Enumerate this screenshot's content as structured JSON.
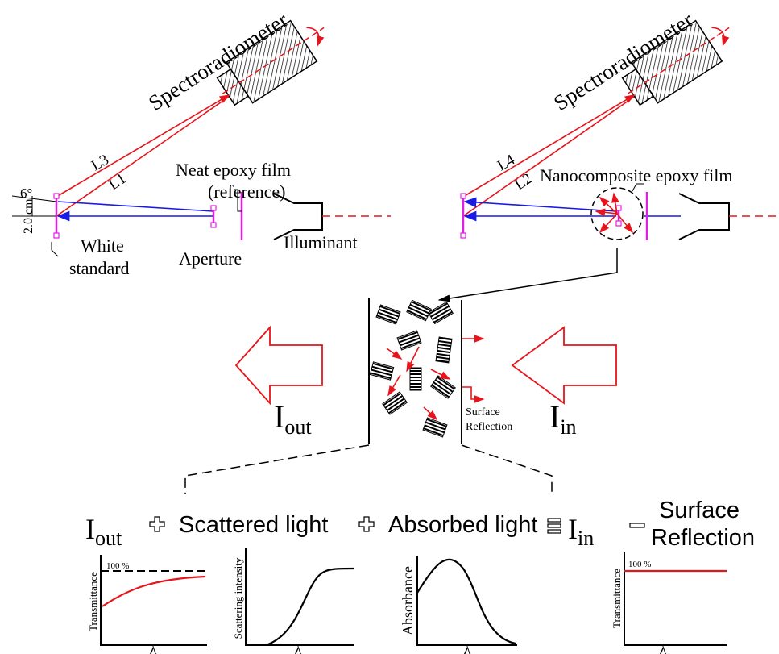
{
  "left_setup": {
    "detector": "Spectroradiometer",
    "rays": [
      "L3",
      "L1"
    ],
    "angle": "6°",
    "distance": "2.0 cm",
    "standard": [
      "White",
      "standard"
    ],
    "film": [
      "Neat epoxy film",
      "(reference)"
    ],
    "aperture": "Aperture",
    "source": "Illuminant"
  },
  "right_setup": {
    "detector": "Spectroradiometer",
    "rays": [
      "L4",
      "L2"
    ],
    "film": "Nanocomposite epoxy film"
  },
  "film_detail": {
    "out": {
      "symbol": "I",
      "subscript": "out"
    },
    "in": {
      "symbol": "I",
      "subscript": "in"
    },
    "surface_reflection": [
      "Surface",
      "Reflection"
    ]
  },
  "equation": {
    "out": {
      "symbol": "I",
      "subscript": "out"
    },
    "scattered": "Scattered light",
    "absorbed": "Absorbed light",
    "in": {
      "symbol": "I",
      "subscript": "in"
    },
    "surface_reflection": [
      "Surface",
      "Reflection"
    ]
  },
  "plots": [
    {
      "y_label": "Transmittance",
      "ref_label": "100 %",
      "x_label": "λ"
    },
    {
      "y_label": "Scattering intensity",
      "x_label": "λ"
    },
    {
      "y_label": "Absorbance",
      "x_label": "λ"
    },
    {
      "y_label": "Transmittance",
      "ref_label": "100 %",
      "x_label": "λ"
    }
  ]
}
